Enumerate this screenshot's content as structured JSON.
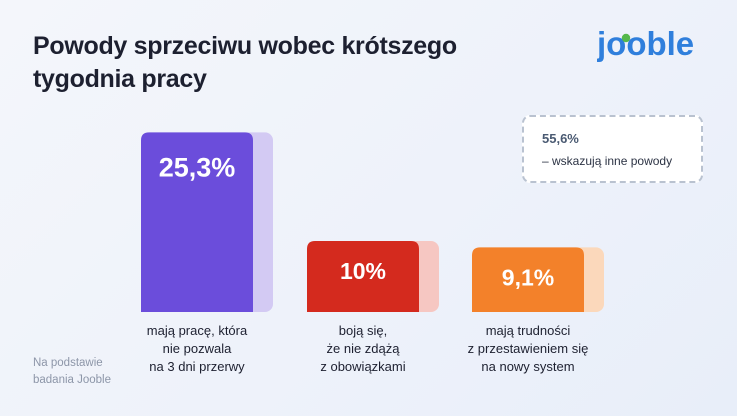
{
  "title": "Powody sprzeciwu wobec krótszego tygodnia pracy",
  "logo_text": "jooble",
  "colors": {
    "logo_blue": "#2f7fdc",
    "logo_green": "#55b84a",
    "bar_1": "#6b4ddb",
    "bar_1_shadow": "#d3caf3",
    "bar_2": "#d42a1e",
    "bar_2_shadow": "#f6c7c2",
    "bar_3": "#f3812a",
    "bar_3_shadow": "#fbd8bb"
  },
  "note": {
    "value": "55,6%",
    "text": "– wskazują inne powody"
  },
  "footnote": "Na podstawie\nbadania Jooble",
  "chart_data": {
    "type": "bar",
    "categories": [
      "mają pracę, która\nnie pozwala\nna 3 dni przerwy",
      "boją się,\nże nie zdążą\nz obowiązkami",
      "mają trudności\nz przestawieniem się\nna nowy system"
    ],
    "values": [
      25.3,
      10,
      9.1
    ],
    "value_labels": [
      "25,3%",
      "10%",
      "9,1%"
    ],
    "ylim": [
      0,
      30
    ],
    "grid": false
  }
}
